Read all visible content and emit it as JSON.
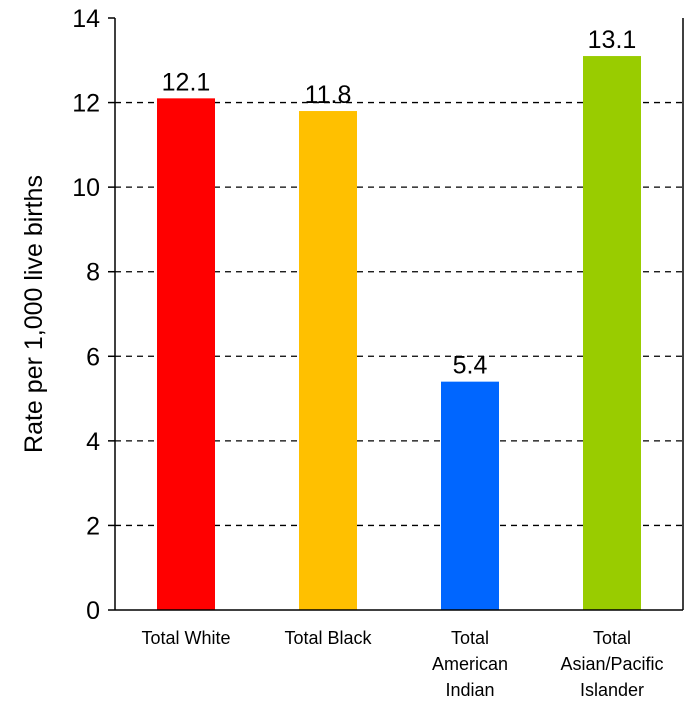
{
  "chart_data": {
    "type": "bar",
    "title": "",
    "xlabel": "",
    "ylabel": "Rate per 1,000 live births",
    "ylim": [
      0,
      14
    ],
    "yticks": [
      0,
      2,
      4,
      6,
      8,
      10,
      12,
      14
    ],
    "grid": "horizontal-dashed",
    "categories": [
      [
        "Total White"
      ],
      [
        "Total Black"
      ],
      [
        "Total",
        "American",
        "Indian"
      ],
      [
        "Total",
        "Asian/Pacific",
        "Islander"
      ]
    ],
    "values": [
      12.1,
      11.8,
      5.4,
      13.1
    ],
    "value_labels": [
      "12.1",
      "11.8",
      "5.4",
      "13.1"
    ],
    "colors": [
      "#ff0000",
      "#ffc000",
      "#0066ff",
      "#99cc00"
    ]
  }
}
